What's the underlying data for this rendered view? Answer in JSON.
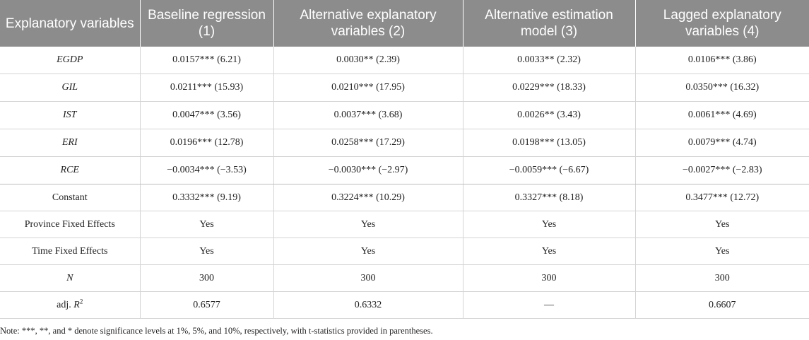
{
  "table": {
    "headers": [
      "Explanatory variables",
      "Baseline regression (1)",
      "Alternative explanatory variables (2)",
      "Alternative estimation model (3)",
      "Lagged explanatory variables (4)"
    ],
    "rows": [
      {
        "label": "EGDP",
        "cells": [
          "0.0157*** (6.21)",
          "0.0030** (2.39)",
          "0.0033** (2.32)",
          "0.0106*** (3.86)"
        ]
      },
      {
        "label": "GIL",
        "cells": [
          "0.0211*** (15.93)",
          "0.0210*** (17.95)",
          "0.0229*** (18.33)",
          "0.0350*** (16.32)"
        ]
      },
      {
        "label": "IST",
        "cells": [
          "0.0047*** (3.56)",
          "0.0037*** (3.68)",
          "0.0026** (3.43)",
          "0.0061*** (4.69)"
        ]
      },
      {
        "label": "ERI",
        "cells": [
          "0.0196*** (12.78)",
          "0.0258*** (17.29)",
          "0.0198*** (13.05)",
          "0.0079*** (4.74)"
        ]
      },
      {
        "label": "RCE",
        "cells": [
          "−0.0034*** (−3.53)",
          "−0.0030*** (−2.97)",
          "−0.0059*** (−6.67)",
          "−0.0027*** (−2.83)"
        ]
      },
      {
        "label": "Constant",
        "cells": [
          "0.3332*** (9.19)",
          "0.3224*** (10.29)",
          "0.3327*** (8.18)",
          "0.3477*** (12.72)"
        ]
      },
      {
        "label": "Province Fixed Effects",
        "cells": [
          "Yes",
          "Yes",
          "Yes",
          "Yes"
        ]
      },
      {
        "label": "Time Fixed Effects",
        "cells": [
          "Yes",
          "Yes",
          "Yes",
          "Yes"
        ]
      },
      {
        "label": "N",
        "cells": [
          "300",
          "300",
          "300",
          "300"
        ]
      },
      {
        "label_prefix": "adj. ",
        "label_symbol": "R",
        "label_sup": "2",
        "cells": [
          "0.6577",
          "0.6332",
          "—",
          "0.6607"
        ]
      }
    ]
  },
  "note": "Note: ***, **, and * denote significance levels at 1%, 5%, and 10%, respectively, with t-statistics provided in parentheses."
}
